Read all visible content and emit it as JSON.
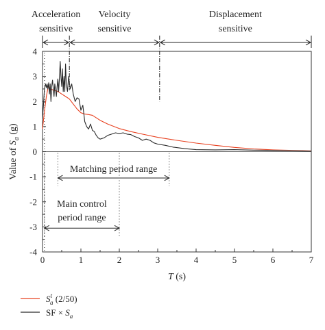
{
  "chart_data": {
    "type": "line",
    "xlabel": "T (s)",
    "ylabel": "Value of S_a (g)",
    "xlim": [
      0,
      7
    ],
    "ylim": [
      -4,
      4
    ],
    "x_ticks": [
      0,
      1,
      2,
      3,
      4,
      5,
      6,
      7
    ],
    "y_ticks": [
      4,
      3,
      2,
      1,
      0,
      -1,
      -2,
      -3,
      -4
    ],
    "grid": false,
    "legend_position": "bottom-left",
    "regions": [
      {
        "name": "acceleration",
        "line1": "Acceleration",
        "line2": "sensitive",
        "x_start": 0,
        "x_end": 0.7
      },
      {
        "name": "velocity",
        "line1": "Velocity",
        "line2": "sensitive",
        "x_start": 0.7,
        "x_end": 3.05
      },
      {
        "name": "displacement",
        "line1": "Displacement",
        "line2": "sensitive",
        "x_start": 3.05,
        "x_end": 7
      }
    ],
    "ranges": [
      {
        "name": "matching",
        "lines": [
          "Matching period range"
        ],
        "x_start": 0.4,
        "x_end": 3.3,
        "y": -1.05
      },
      {
        "name": "main-control",
        "lines": [
          "Main control",
          "period range"
        ],
        "x_start": 0.05,
        "x_end": 2.0,
        "y": -3.05
      }
    ],
    "series": [
      {
        "name": "S_a^t (2/50)",
        "color": "#e8401f",
        "points": [
          [
            0.0,
            0.9
          ],
          [
            0.05,
            1.6
          ],
          [
            0.1,
            2.2
          ],
          [
            0.15,
            2.6
          ],
          [
            0.2,
            2.5
          ],
          [
            0.3,
            2.45
          ],
          [
            0.4,
            2.4
          ],
          [
            0.5,
            2.3
          ],
          [
            0.6,
            2.2
          ],
          [
            0.7,
            2.1
          ],
          [
            0.8,
            1.9
          ],
          [
            0.9,
            1.7
          ],
          [
            1.0,
            1.55
          ],
          [
            1.1,
            1.5
          ],
          [
            1.2,
            1.48
          ],
          [
            1.3,
            1.45
          ],
          [
            1.4,
            1.35
          ],
          [
            1.5,
            1.25
          ],
          [
            1.7,
            1.1
          ],
          [
            2.0,
            0.92
          ],
          [
            2.3,
            0.8
          ],
          [
            2.6,
            0.7
          ],
          [
            3.0,
            0.57
          ],
          [
            3.5,
            0.45
          ],
          [
            4.0,
            0.34
          ],
          [
            4.5,
            0.25
          ],
          [
            5.0,
            0.17
          ],
          [
            5.5,
            0.11
          ],
          [
            6.0,
            0.07
          ],
          [
            6.5,
            0.05
          ],
          [
            7.0,
            0.03
          ]
        ]
      },
      {
        "name": "SF × S_a",
        "color": "#2a2a2a",
        "points": [
          [
            0.0,
            1.3
          ],
          [
            0.03,
            2.0
          ],
          [
            0.05,
            2.5
          ],
          [
            0.08,
            2.7
          ],
          [
            0.1,
            2.55
          ],
          [
            0.12,
            2.7
          ],
          [
            0.14,
            2.5
          ],
          [
            0.16,
            2.75
          ],
          [
            0.18,
            2.3
          ],
          [
            0.2,
            2.7
          ],
          [
            0.22,
            2.0
          ],
          [
            0.24,
            2.6
          ],
          [
            0.26,
            2.85
          ],
          [
            0.28,
            2.5
          ],
          [
            0.3,
            2.2
          ],
          [
            0.32,
            2.7
          ],
          [
            0.34,
            2.5
          ],
          [
            0.36,
            2.2
          ],
          [
            0.38,
            2.6
          ],
          [
            0.4,
            2.9
          ],
          [
            0.42,
            2.4
          ],
          [
            0.44,
            2.9
          ],
          [
            0.46,
            3.6
          ],
          [
            0.48,
            3.0
          ],
          [
            0.5,
            2.6
          ],
          [
            0.52,
            3.3
          ],
          [
            0.54,
            2.4
          ],
          [
            0.56,
            3.0
          ],
          [
            0.58,
            2.4
          ],
          [
            0.6,
            3.5
          ],
          [
            0.62,
            2.7
          ],
          [
            0.65,
            2.4
          ],
          [
            0.68,
            3.0
          ],
          [
            0.72,
            2.5
          ],
          [
            0.76,
            2.7
          ],
          [
            0.8,
            2.3
          ],
          [
            0.85,
            2.0
          ],
          [
            0.9,
            2.15
          ],
          [
            0.95,
            2.1
          ],
          [
            1.0,
            1.65
          ],
          [
            1.05,
            1.85
          ],
          [
            1.1,
            1.2
          ],
          [
            1.15,
            1.0
          ],
          [
            1.2,
            0.9
          ],
          [
            1.25,
            1.1
          ],
          [
            1.3,
            0.85
          ],
          [
            1.35,
            0.8
          ],
          [
            1.4,
            0.65
          ],
          [
            1.45,
            0.55
          ],
          [
            1.5,
            0.5
          ],
          [
            1.6,
            0.55
          ],
          [
            1.7,
            0.65
          ],
          [
            1.8,
            0.7
          ],
          [
            1.9,
            0.75
          ],
          [
            2.0,
            0.72
          ],
          [
            2.1,
            0.75
          ],
          [
            2.2,
            0.7
          ],
          [
            2.3,
            0.68
          ],
          [
            2.4,
            0.6
          ],
          [
            2.5,
            0.55
          ],
          [
            2.6,
            0.45
          ],
          [
            2.7,
            0.5
          ],
          [
            2.8,
            0.45
          ],
          [
            2.9,
            0.35
          ],
          [
            3.0,
            0.3
          ],
          [
            3.2,
            0.25
          ],
          [
            3.4,
            0.18
          ],
          [
            3.7,
            0.12
          ],
          [
            4.0,
            0.08
          ],
          [
            4.5,
            0.07
          ],
          [
            5.0,
            0.08
          ],
          [
            5.5,
            0.06
          ],
          [
            6.0,
            0.05
          ],
          [
            6.5,
            0.04
          ],
          [
            7.0,
            0.02
          ]
        ]
      }
    ]
  }
}
